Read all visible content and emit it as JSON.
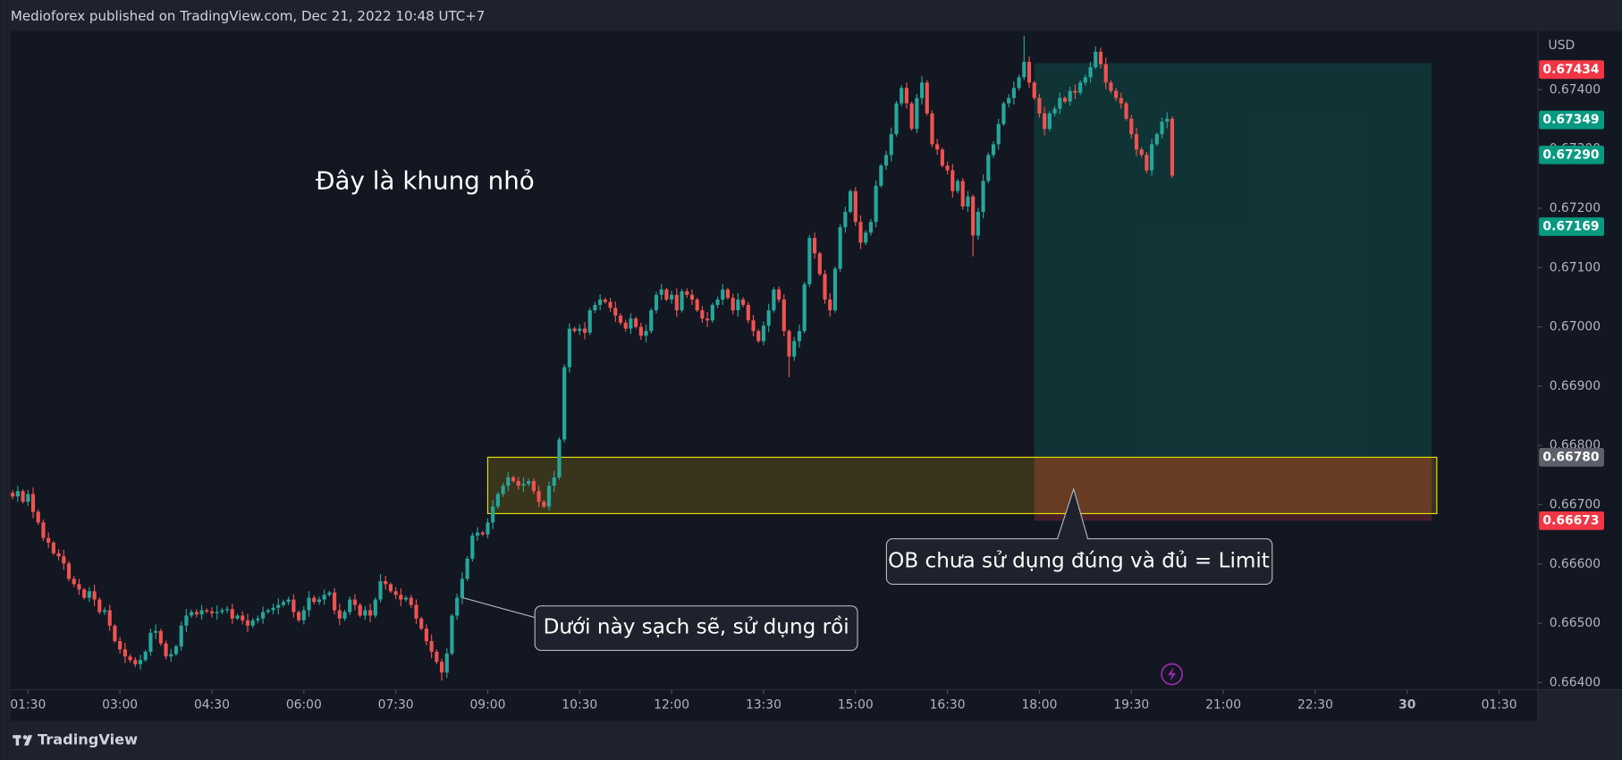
{
  "page": {
    "publisher_line": "Medioforex published on TradingView.com, Dec 21, 2022 10:48 UTC+7",
    "brand": "TradingView"
  },
  "chart_data": {
    "type": "candlestick",
    "y_label": "USD",
    "annotations": [
      {
        "text": "Đây là khung nhỏ"
      }
    ],
    "callouts": [
      {
        "text": "Dưới này sạch sẽ, sử dụng rồi"
      },
      {
        "text": "OB chưa sử dụng đúng và đủ = Limit"
      }
    ],
    "up_color": "#26a69a",
    "down_color": "#ef5350",
    "xlim": [
      73,
      1568
    ],
    "ylim": [
      0.66388,
      0.67499
    ],
    "grid": false,
    "xticks": [
      {
        "value": 90,
        "label": "01:30"
      },
      {
        "value": 180,
        "label": "03:00"
      },
      {
        "value": 270,
        "label": "04:30"
      },
      {
        "value": 360,
        "label": "06:00"
      },
      {
        "value": 450,
        "label": "07:30"
      },
      {
        "value": 540,
        "label": "09:00"
      },
      {
        "value": 630,
        "label": "10:30"
      },
      {
        "value": 720,
        "label": "12:00"
      },
      {
        "value": 810,
        "label": "13:30"
      },
      {
        "value": 900,
        "label": "15:00"
      },
      {
        "value": 990,
        "label": "16:30"
      },
      {
        "value": 1080,
        "label": "18:00"
      },
      {
        "value": 1170,
        "label": "19:30"
      },
      {
        "value": 1260,
        "label": "21:00"
      },
      {
        "value": 1350,
        "label": "22:30"
      },
      {
        "value": 1440,
        "label": "30"
      },
      {
        "value": 1530,
        "label": "01:30"
      }
    ],
    "yticks": [
      {
        "value": 0.674,
        "label": "0.67400"
      },
      {
        "value": 0.673,
        "label": "0.67300"
      },
      {
        "value": 0.672,
        "label": "0.67200"
      },
      {
        "value": 0.671,
        "label": "0.67100"
      },
      {
        "value": 0.67,
        "label": "0.67000"
      },
      {
        "value": 0.669,
        "label": "0.66900"
      },
      {
        "value": 0.668,
        "label": "0.66800"
      },
      {
        "value": 0.667,
        "label": "0.66700"
      },
      {
        "value": 0.666,
        "label": "0.66600"
      },
      {
        "value": 0.665,
        "label": "0.66500"
      },
      {
        "value": 0.664,
        "label": "0.66400"
      }
    ],
    "price_tags": [
      {
        "value": 0.67434,
        "color": "#f23645"
      },
      {
        "value": 0.67349,
        "color": "#089981"
      },
      {
        "value": 0.6729,
        "label": "0.67290",
        "color": "#089981"
      },
      {
        "value": 0.67169,
        "color": "#089981"
      },
      {
        "value": 0.6678,
        "label": "0.66780",
        "color": "#5d606b"
      },
      {
        "value": 0.66673,
        "color": "#f23645"
      }
    ],
    "position": {
      "start": 1075,
      "end": 1464,
      "target": 0.67445,
      "entry": 0.6678,
      "stop": 0.66673
    },
    "ob_zone": {
      "start": 540,
      "end": 1469,
      "top": 0.6678,
      "bottom": 0.66685
    },
    "x": [
      75,
      80,
      85,
      90,
      95,
      100,
      105,
      110,
      115,
      120,
      125,
      130,
      135,
      140,
      145,
      150,
      155,
      160,
      165,
      170,
      175,
      180,
      185,
      190,
      195,
      200,
      205,
      210,
      215,
      220,
      225,
      230,
      235,
      240,
      245,
      250,
      255,
      260,
      265,
      270,
      275,
      280,
      285,
      290,
      295,
      300,
      305,
      310,
      315,
      320,
      325,
      330,
      335,
      340,
      345,
      350,
      355,
      360,
      365,
      370,
      375,
      380,
      385,
      390,
      395,
      400,
      405,
      410,
      415,
      420,
      425,
      430,
      435,
      440,
      445,
      450,
      455,
      460,
      465,
      470,
      475,
      480,
      485,
      490,
      495,
      500,
      505,
      510,
      515,
      520,
      525,
      530,
      535,
      540,
      545,
      550,
      555,
      560,
      565,
      570,
      575,
      580,
      585,
      590,
      595,
      600,
      605,
      610,
      615,
      620,
      625,
      630,
      635,
      640,
      645,
      650,
      655,
      660,
      665,
      670,
      675,
      680,
      685,
      690,
      695,
      700,
      705,
      710,
      715,
      720,
      725,
      730,
      735,
      740,
      745,
      750,
      755,
      760,
      765,
      770,
      775,
      780,
      785,
      790,
      795,
      800,
      805,
      810,
      815,
      820,
      825,
      830,
      835,
      840,
      845,
      850,
      855,
      860,
      865,
      870,
      875,
      880,
      885,
      890,
      895,
      900,
      905,
      910,
      915,
      920,
      925,
      930,
      935,
      940,
      945,
      950,
      955,
      960,
      965,
      970,
      975,
      980,
      985,
      990,
      995,
      1000,
      1005,
      1010,
      1015,
      1020,
      1025,
      1030,
      1035,
      1040,
      1045,
      1050,
      1055,
      1060,
      1065,
      1070,
      1075,
      1080,
      1085,
      1090,
      1095,
      1100,
      1105,
      1110,
      1115,
      1120,
      1125,
      1130,
      1135,
      1140,
      1145,
      1150,
      1155,
      1160,
      1165,
      1170,
      1175,
      1180,
      1185,
      1190,
      1195,
      1200,
      1205,
      1210
    ],
    "open": [
      0.6672,
      0.66714,
      0.66723,
      0.66705,
      0.66718,
      0.66688,
      0.6667,
      0.66644,
      0.66636,
      0.66618,
      0.66613,
      0.66601,
      0.66575,
      0.66566,
      0.66557,
      0.66543,
      0.66554,
      0.6654,
      0.66519,
      0.66522,
      0.66496,
      0.6647,
      0.66456,
      0.66444,
      0.66438,
      0.66431,
      0.66438,
      0.66452,
      0.66484,
      0.66487,
      0.66466,
      0.66444,
      0.66448,
      0.66461,
      0.66496,
      0.66513,
      0.66519,
      0.66515,
      0.66522,
      0.6652,
      0.66517,
      0.66519,
      0.66522,
      0.66524,
      0.66508,
      0.66513,
      0.66505,
      0.66496,
      0.66505,
      0.66508,
      0.66519,
      0.66522,
      0.66526,
      0.66531,
      0.66536,
      0.6654,
      0.66519,
      0.66505,
      0.66522,
      0.66543,
      0.66536,
      0.6654,
      0.66548,
      0.66552,
      0.66522,
      0.66508,
      0.66519,
      0.6654,
      0.66531,
      0.66513,
      0.66522,
      0.66513,
      0.6654,
      0.66571,
      0.66566,
      0.66554,
      0.66548,
      0.6654,
      0.66543,
      0.66531,
      0.66508,
      0.66491,
      0.6647,
      0.66452,
      0.66435,
      0.66417,
      0.66449,
      0.66513,
      0.66543,
      0.66575,
      0.66609,
      0.66648,
      0.66653,
      0.6665,
      0.6667,
      0.66697,
      0.66718,
      0.66732,
      0.66746,
      0.6674,
      0.66732,
      0.66735,
      0.6674,
      0.66723,
      0.66705,
      0.66697,
      0.66732,
      0.66746,
      0.6681,
      0.66932,
      0.66997,
      0.66993,
      0.66997,
      0.6699,
      0.67028,
      0.67037,
      0.67046,
      0.67042,
      0.67032,
      0.67019,
      0.67007,
      0.66997,
      0.67014,
      0.67,
      0.66985,
      0.66993,
      0.67028,
      0.67054,
      0.67063,
      0.67046,
      0.67054,
      0.67028,
      0.6706,
      0.67054,
      0.67046,
      0.67028,
      0.67014,
      0.67011,
      0.67037,
      0.67046,
      0.67063,
      0.67049,
      0.67028,
      0.67046,
      0.67037,
      0.67011,
      0.66993,
      0.66976,
      0.67002,
      0.67028,
      0.67063,
      0.67046,
      0.66993,
      0.6695,
      0.66976,
      0.66993,
      0.67072,
      0.6715,
      0.67124,
      0.67089,
      0.67046,
      0.67028,
      0.67098,
      0.67168,
      0.67194,
      0.67229,
      0.67177,
      0.67142,
      0.67159,
      0.67177,
      0.67238,
      0.67272,
      0.6729,
      0.67325,
      0.67377,
      0.67403,
      0.67377,
      0.67334,
      0.67386,
      0.67412,
      0.6736,
      0.67308,
      0.67299,
      0.67272,
      0.67264,
      0.67229,
      0.67246,
      0.67203,
      0.6722,
      0.67154,
      0.67194,
      0.67246,
      0.6729,
      0.67308,
      0.67342,
      0.67377,
      0.67386,
      0.67403,
      0.67421,
      0.67447,
      0.67412,
      0.67386,
      0.6736,
      0.67334,
      0.6736,
      0.67368,
      0.67386,
      0.6738,
      0.67398,
      0.67395,
      0.67412,
      0.67421,
      0.67438,
      0.67464,
      0.67443,
      0.67412,
      0.67398,
      0.67386,
      0.67377,
      0.67351,
      0.67325,
      0.67299,
      0.6729,
      0.67264,
      0.67308,
      0.67325,
      0.67346,
      0.67351
    ],
    "high": [
      0.66725,
      0.66732,
      0.66726,
      0.66725,
      0.66729,
      0.66692,
      0.66675,
      0.66653,
      0.66639,
      0.66625,
      0.66624,
      0.66605,
      0.6658,
      0.66575,
      0.6656,
      0.66561,
      0.66565,
      0.66544,
      0.66527,
      0.66531,
      0.66499,
      0.66477,
      0.66467,
      0.66448,
      0.66443,
      0.66447,
      0.66455,
      0.66491,
      0.66498,
      0.66491,
      0.66471,
      0.66457,
      0.66464,
      0.66503,
      0.66524,
      0.66523,
      0.66524,
      0.66531,
      0.66525,
      0.66527,
      0.6653,
      0.66526,
      0.66529,
      0.66533,
      0.66516,
      0.6652,
      0.66516,
      0.66509,
      0.66513,
      0.66528,
      0.66525,
      0.66533,
      0.66542,
      0.6654,
      0.66545,
      0.66549,
      0.66522,
      0.66529,
      0.66554,
      0.66547,
      0.66545,
      0.66557,
      0.66555,
      0.66559,
      0.66533,
      0.66523,
      0.66545,
      0.66549,
      0.66534,
      0.66529,
      0.66533,
      0.66544,
      0.66583,
      0.6658,
      0.66569,
      0.66561,
      0.66559,
      0.66547,
      0.66548,
      0.6654,
      0.66511,
      0.66498,
      0.66481,
      0.66456,
      0.6644,
      0.66458,
      0.66516,
      0.6655,
      0.66586,
      0.66613,
      0.66653,
      0.66662,
      0.66656,
      0.66677,
      0.66708,
      0.66722,
      0.66737,
      0.66755,
      0.66749,
      0.66747,
      0.66746,
      0.66744,
      0.66745,
      0.66732,
      0.66708,
      0.66739,
      0.66757,
      0.66814,
      0.66937,
      0.67006,
      0.67,
      0.67004,
      0.67008,
      0.67032,
      0.67042,
      0.67055,
      0.67049,
      0.67049,
      0.67043,
      0.67023,
      0.67012,
      0.67023,
      0.67017,
      0.67007,
      0.67004,
      0.67032,
      0.67059,
      0.67072,
      0.67066,
      0.67061,
      0.67065,
      0.67064,
      0.67065,
      0.67063,
      0.67049,
      0.67035,
      0.67025,
      0.67041,
      0.67051,
      0.67072,
      0.67066,
      0.67056,
      0.67057,
      0.6705,
      0.67042,
      0.6702,
      0.66996,
      0.67009,
      0.67039,
      0.67067,
      0.67068,
      0.67055,
      0.66996,
      0.66983,
      0.67004,
      0.67076,
      0.67155,
      0.67159,
      0.67127,
      0.67096,
      0.67057,
      0.67102,
      0.67173,
      0.67203,
      0.67232,
      0.67236,
      0.67188,
      0.67163,
      0.67182,
      0.67247,
      0.67275,
      0.67297,
      0.67336,
      0.67381,
      0.67408,
      0.67412,
      0.6738,
      0.67393,
      0.67423,
      0.67416,
      0.67365,
      0.67317,
      0.67302,
      0.67279,
      0.67275,
      0.6725,
      0.67251,
      0.67229,
      0.67223,
      0.67201,
      0.67257,
      0.67294,
      0.67313,
      0.67351,
      0.6738,
      0.67393,
      0.67414,
      0.67425,
      0.67491,
      0.67456,
      0.67415,
      0.67393,
      0.67371,
      0.67364,
      0.67373,
      0.67395,
      0.67389,
      0.67405,
      0.67409,
      0.67416,
      0.67426,
      0.67447,
      0.67473,
      0.67471,
      0.67454,
      0.67416,
      0.67403,
      0.67395,
      0.6738,
      0.67358,
      0.67336,
      0.67303,
      0.67295,
      0.67317,
      0.67328,
      0.67353,
      0.67362,
      0.67355
    ],
    "low": [
      0.66709,
      0.66705,
      0.66702,
      0.66698,
      0.66677,
      0.66666,
      0.66639,
      0.66627,
      0.66615,
      0.66606,
      0.6659,
      0.66571,
      0.66561,
      0.66548,
      0.6654,
      0.66536,
      0.66529,
      0.66515,
      0.66514,
      0.66487,
      0.66467,
      0.66449,
      0.66433,
      0.66434,
      0.66426,
      0.66422,
      0.66435,
      0.66445,
      0.66473,
      0.66462,
      0.66439,
      0.66435,
      0.66445,
      0.66454,
      0.66485,
      0.66509,
      0.6651,
      0.66506,
      0.66517,
      0.6651,
      0.66506,
      0.66515,
      0.66517,
      0.66499,
      0.66505,
      0.66498,
      0.66485,
      0.66492,
      0.665,
      0.66499,
      0.66516,
      0.66515,
      0.66515,
      0.66527,
      0.66531,
      0.6651,
      0.66502,
      0.66498,
      0.66511,
      0.66532,
      0.66531,
      0.66531,
      0.66545,
      0.66515,
      0.66497,
      0.66504,
      0.66514,
      0.66522,
      0.6651,
      0.66506,
      0.66502,
      0.66509,
      0.66535,
      0.66557,
      0.66551,
      0.66541,
      0.66529,
      0.66536,
      0.66526,
      0.66499,
      0.66488,
      0.66463,
      0.66441,
      0.66431,
      0.66403,
      0.66408,
      0.66446,
      0.66506,
      0.66532,
      0.66571,
      0.66604,
      0.66639,
      0.66647,
      0.66643,
      0.66659,
      0.66693,
      0.66713,
      0.66723,
      0.66737,
      0.66725,
      0.66721,
      0.66731,
      0.66718,
      0.66696,
      0.66694,
      0.6669,
      0.66721,
      0.66742,
      0.66805,
      0.66923,
      0.6699,
      0.66986,
      0.66979,
      0.66986,
      0.67023,
      0.67028,
      0.67039,
      0.67025,
      0.67008,
      0.67003,
      0.66992,
      0.66988,
      0.66997,
      0.66978,
      0.66974,
      0.66989,
      0.67023,
      0.67045,
      0.67043,
      0.67039,
      0.67017,
      0.67024,
      0.67049,
      0.67037,
      0.67025,
      0.67007,
      0.67,
      0.67007,
      0.67032,
      0.67037,
      0.67046,
      0.67021,
      0.67017,
      0.67033,
      0.67006,
      0.66984,
      0.66973,
      0.66969,
      0.66991,
      0.67024,
      0.67041,
      0.66984,
      0.66915,
      0.66943,
      0.66965,
      0.66989,
      0.67067,
      0.67115,
      0.67086,
      0.67039,
      0.67017,
      0.67024,
      0.67093,
      0.67159,
      0.67191,
      0.6717,
      0.67131,
      0.67138,
      0.67154,
      0.67168,
      0.67235,
      0.67265,
      0.67279,
      0.67321,
      0.67372,
      0.67368,
      0.67331,
      0.67327,
      0.67375,
      0.67356,
      0.67303,
      0.6729,
      0.67269,
      0.67257,
      0.67218,
      0.67225,
      0.67198,
      0.67194,
      0.67119,
      0.67147,
      0.67183,
      0.67242,
      0.67285,
      0.67299,
      0.67339,
      0.6737,
      0.67375,
      0.67399,
      0.67416,
      0.67403,
      0.67383,
      0.67353,
      0.67323,
      0.6733,
      0.67355,
      0.67359,
      0.67377,
      0.67373,
      0.67384,
      0.67391,
      0.67407,
      0.67412,
      0.67435,
      0.67436,
      0.67401,
      0.67394,
      0.67381,
      0.67368,
      0.67348,
      0.67318,
      0.67288,
      0.67286,
      0.67259,
      0.67255,
      0.67305,
      0.67318,
      0.67335,
      0.67251
    ],
    "close": [
      0.66714,
      0.66723,
      0.66705,
      0.66718,
      0.66688,
      0.6667,
      0.66644,
      0.66636,
      0.66618,
      0.66613,
      0.66601,
      0.66575,
      0.66566,
      0.66557,
      0.66543,
      0.66554,
      0.6654,
      0.66519,
      0.66522,
      0.66496,
      0.6647,
      0.66456,
      0.66444,
      0.66438,
      0.66431,
      0.66438,
      0.66452,
      0.66484,
      0.66487,
      0.66466,
      0.66444,
      0.66448,
      0.66461,
      0.66496,
      0.66513,
      0.66519,
      0.66515,
      0.66522,
      0.6652,
      0.66517,
      0.66519,
      0.66522,
      0.66524,
      0.66508,
      0.66513,
      0.66505,
      0.66496,
      0.66505,
      0.66508,
      0.66519,
      0.66522,
      0.66526,
      0.66531,
      0.66536,
      0.6654,
      0.66519,
      0.66505,
      0.66522,
      0.66543,
      0.66536,
      0.6654,
      0.66548,
      0.66552,
      0.66522,
      0.66508,
      0.66519,
      0.6654,
      0.66531,
      0.66513,
      0.66522,
      0.66513,
      0.6654,
      0.66571,
      0.66566,
      0.66554,
      0.66548,
      0.6654,
      0.66543,
      0.66531,
      0.66508,
      0.66491,
      0.6647,
      0.66452,
      0.66435,
      0.66417,
      0.66449,
      0.66513,
      0.66543,
      0.66575,
      0.66609,
      0.66648,
      0.66653,
      0.6665,
      0.6667,
      0.66697,
      0.66718,
      0.66732,
      0.66746,
      0.6674,
      0.66732,
      0.66735,
      0.6674,
      0.66723,
      0.66705,
      0.66697,
      0.66732,
      0.66746,
      0.6681,
      0.66932,
      0.66997,
      0.66993,
      0.66997,
      0.6699,
      0.67028,
      0.67037,
      0.67046,
      0.67042,
      0.67032,
      0.67019,
      0.67007,
      0.66997,
      0.67014,
      0.67,
      0.66985,
      0.66993,
      0.67028,
      0.67054,
      0.67063,
      0.67046,
      0.67054,
      0.67028,
      0.6706,
      0.67054,
      0.67046,
      0.67028,
      0.67014,
      0.67011,
      0.67037,
      0.67046,
      0.67063,
      0.67049,
      0.67028,
      0.67046,
      0.67037,
      0.67011,
      0.66993,
      0.66976,
      0.67002,
      0.67028,
      0.67063,
      0.67046,
      0.66993,
      0.6695,
      0.66976,
      0.66993,
      0.67072,
      0.6715,
      0.67124,
      0.67089,
      0.67046,
      0.67028,
      0.67098,
      0.67168,
      0.67194,
      0.67229,
      0.67177,
      0.67142,
      0.67159,
      0.67177,
      0.67238,
      0.67272,
      0.6729,
      0.67325,
      0.67377,
      0.67403,
      0.67377,
      0.67334,
      0.67386,
      0.67412,
      0.6736,
      0.67308,
      0.67299,
      0.67272,
      0.67264,
      0.67229,
      0.67246,
      0.67203,
      0.6722,
      0.67154,
      0.67194,
      0.67246,
      0.6729,
      0.67308,
      0.67342,
      0.67377,
      0.67386,
      0.67403,
      0.67421,
      0.67447,
      0.67412,
      0.67386,
      0.6736,
      0.67334,
      0.6736,
      0.67368,
      0.67386,
      0.6738,
      0.67398,
      0.67395,
      0.67412,
      0.67421,
      0.67438,
      0.67464,
      0.67443,
      0.67412,
      0.67398,
      0.67386,
      0.67377,
      0.67351,
      0.67325,
      0.67299,
      0.6729,
      0.67264,
      0.67308,
      0.67325,
      0.67346,
      0.67351,
      0.67255
    ]
  }
}
